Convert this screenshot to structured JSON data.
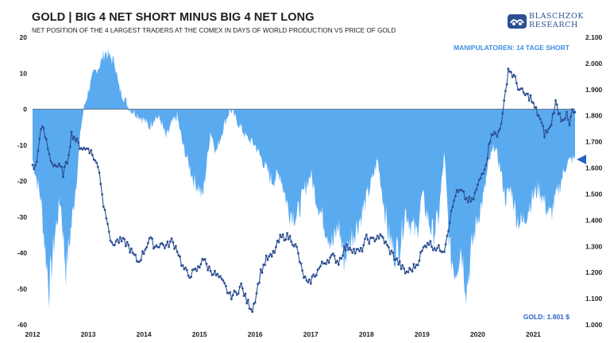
{
  "header": {
    "title": "GOLD | BIG 4 NET SHORT MINUS BIG 4 NET LONG",
    "subtitle": "NET POSITION OF THE 4 LARGEST TRADERS AT THE COMEX IN DAYS OF WORLD PRODUCTION VS PRICE OF GOLD"
  },
  "logo": {
    "line1": "BLASCHZOK",
    "line2": "RESEARCH"
  },
  "colors": {
    "area": "#5aaaf0",
    "line": "#2d4f93",
    "accent": "#3b8fe2"
  },
  "chart_data": {
    "type": "area",
    "annotation_top": "MANIPULATOREN: 14 TAGE SHORT",
    "annotation_bottom": "GOLD: 1.801 $",
    "x_ticks": [
      "2012",
      "2013",
      "2014",
      "2015",
      "2016",
      "2017",
      "2018",
      "2019",
      "2020",
      "2021"
    ],
    "y_left": {
      "ylim": [
        -60,
        20
      ],
      "ticks": [
        "20",
        "10",
        "0",
        "-10",
        "-20",
        "-30",
        "-40",
        "-50",
        "-60"
      ]
    },
    "y_right": {
      "ylim": [
        1000,
        2100
      ],
      "ticks": [
        "2.100",
        "2.000",
        "1.900",
        "1.800",
        "1.700",
        "1.600",
        "1.500",
        "1.400",
        "1.300",
        "1.200",
        "1.100",
        "1.000"
      ]
    },
    "xlim": [
      2012.0,
      2021.75
    ],
    "series": [
      {
        "name": "Big 4 Net Short minus Big 4 Net Long (days of world production)",
        "axis": "left",
        "x": [
          2012.0,
          2012.08,
          2012.15,
          2012.22,
          2012.3,
          2012.4,
          2012.5,
          2012.6,
          2012.7,
          2012.8,
          2012.87,
          2012.92,
          2013.0,
          2013.1,
          2013.2,
          2013.3,
          2013.42,
          2013.48,
          2013.55,
          2013.65,
          2013.75,
          2013.85,
          2014.0,
          2014.1,
          2014.2,
          2014.3,
          2014.4,
          2014.5,
          2014.6,
          2014.7,
          2014.8,
          2014.9,
          2015.0,
          2015.05,
          2015.1,
          2015.2,
          2015.3,
          2015.45,
          2015.55,
          2015.7,
          2015.85,
          2016.0,
          2016.15,
          2016.3,
          2016.45,
          2016.6,
          2016.75,
          2016.9,
          2017.0,
          2017.1,
          2017.25,
          2017.4,
          2017.5,
          2017.6,
          2017.75,
          2017.9,
          2018.0,
          2018.1,
          2018.2,
          2018.3,
          2018.4,
          2018.5,
          2018.6,
          2018.7,
          2018.8,
          2018.9,
          2019.0,
          2019.1,
          2019.2,
          2019.3,
          2019.4,
          2019.5,
          2019.6,
          2019.7,
          2019.8,
          2019.9,
          2020.0,
          2020.1,
          2020.2,
          2020.3,
          2020.4,
          2020.5,
          2020.6,
          2020.7,
          2020.8,
          2020.9,
          2021.0,
          2021.1,
          2021.2,
          2021.3,
          2021.4,
          2021.5,
          2021.6,
          2021.7,
          2021.75
        ],
        "values": [
          -14,
          -20,
          -25,
          -38,
          -50,
          -35,
          -25,
          -45,
          -32,
          -18,
          -5,
          0,
          5,
          10,
          12,
          16,
          14,
          13,
          6,
          3,
          0,
          -1,
          -3,
          -5,
          -2,
          -3,
          -8,
          -4,
          -2,
          -10,
          -15,
          -20,
          -22,
          -25,
          -19,
          -6,
          -12,
          -4,
          0,
          -4,
          -8,
          -10,
          -15,
          -20,
          -18,
          -28,
          -30,
          -22,
          -18,
          -25,
          -32,
          -38,
          -32,
          -42,
          -35,
          -30,
          -25,
          -20,
          -14,
          -25,
          -35,
          -40,
          -38,
          -28,
          -32,
          -35,
          -24,
          -30,
          -35,
          -30,
          -12,
          -40,
          -45,
          -38,
          -50,
          -38,
          -30,
          -25,
          -15,
          -10,
          -16,
          -25,
          -22,
          -30,
          -32,
          -28,
          -24,
          -22,
          -26,
          -30,
          -25,
          -20,
          -15,
          -14,
          -14
        ]
      },
      {
        "name": "Gold price (USD)",
        "axis": "right",
        "x": [
          2012.0,
          2012.05,
          2012.1,
          2012.15,
          2012.2,
          2012.25,
          2012.3,
          2012.35,
          2012.42,
          2012.5,
          2012.55,
          2012.62,
          2012.7,
          2012.75,
          2012.82,
          2012.88,
          2012.95,
          2013.0,
          2013.1,
          2013.2,
          2013.28,
          2013.35,
          2013.42,
          2013.5,
          2013.6,
          2013.7,
          2013.8,
          2013.9,
          2014.0,
          2014.1,
          2014.2,
          2014.3,
          2014.4,
          2014.5,
          2014.6,
          2014.7,
          2014.8,
          2014.9,
          2015.0,
          2015.05,
          2015.15,
          2015.25,
          2015.35,
          2015.45,
          2015.55,
          2015.65,
          2015.75,
          2015.85,
          2015.95,
          2016.0,
          2016.1,
          2016.2,
          2016.3,
          2016.45,
          2016.55,
          2016.65,
          2016.75,
          2016.85,
          2016.95,
          2017.0,
          2017.1,
          2017.2,
          2017.3,
          2017.4,
          2017.5,
          2017.6,
          2017.7,
          2017.8,
          2017.9,
          2018.0,
          2018.1,
          2018.2,
          2018.3,
          2018.4,
          2018.5,
          2018.6,
          2018.7,
          2018.8,
          2018.9,
          2019.0,
          2019.1,
          2019.2,
          2019.3,
          2019.4,
          2019.5,
          2019.6,
          2019.7,
          2019.8,
          2019.9,
          2020.0,
          2020.08,
          2020.15,
          2020.2,
          2020.25,
          2020.35,
          2020.45,
          2020.55,
          2020.65,
          2020.75,
          2020.85,
          2020.95,
          2021.0,
          2021.1,
          2021.2,
          2021.3,
          2021.4,
          2021.5,
          2021.6,
          2021.65,
          2021.7,
          2021.75
        ],
        "values": [
          1610,
          1600,
          1660,
          1760,
          1740,
          1700,
          1650,
          1620,
          1610,
          1600,
          1580,
          1620,
          1730,
          1720,
          1690,
          1680,
          1670,
          1680,
          1640,
          1590,
          1450,
          1400,
          1300,
          1320,
          1320,
          1310,
          1270,
          1240,
          1280,
          1330,
          1300,
          1310,
          1300,
          1320,
          1290,
          1220,
          1190,
          1200,
          1220,
          1260,
          1220,
          1200,
          1180,
          1150,
          1110,
          1120,
          1150,
          1090,
          1060,
          1100,
          1200,
          1250,
          1260,
          1330,
          1340,
          1330,
          1290,
          1200,
          1150,
          1170,
          1200,
          1230,
          1250,
          1260,
          1240,
          1290,
          1300,
          1280,
          1280,
          1330,
          1320,
          1340,
          1330,
          1290,
          1260,
          1230,
          1200,
          1210,
          1230,
          1280,
          1320,
          1300,
          1290,
          1290,
          1400,
          1500,
          1510,
          1480,
          1470,
          1530,
          1580,
          1620,
          1680,
          1740,
          1720,
          1800,
          1980,
          1950,
          1900,
          1880,
          1870,
          1840,
          1800,
          1730,
          1750,
          1850,
          1790,
          1800,
          1760,
          1820,
          1801
        ]
      }
    ]
  }
}
